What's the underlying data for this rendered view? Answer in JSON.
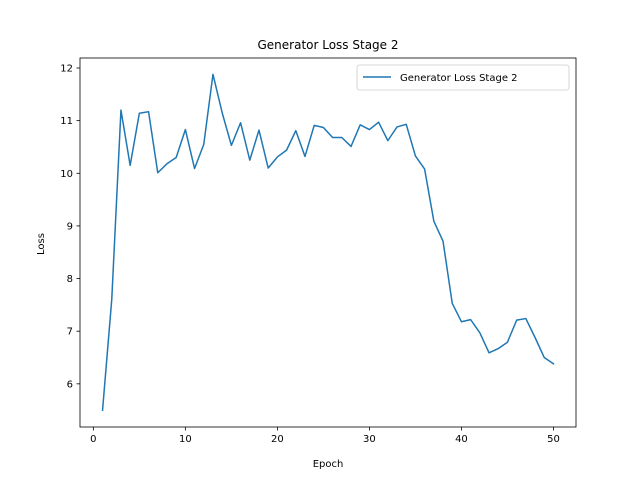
{
  "chart_data": {
    "type": "line",
    "title": "Generator Loss Stage 2",
    "xlabel": "Epoch",
    "ylabel": "Loss",
    "xlim": [
      -1.45,
      52.45
    ],
    "ylim": [
      5.18,
      12.19
    ],
    "xticks": [
      0,
      10,
      20,
      30,
      40,
      50
    ],
    "yticks": [
      6,
      7,
      8,
      9,
      10,
      11,
      12
    ],
    "grid": false,
    "legend_position": "upper right",
    "series": [
      {
        "name": "Generator Loss Stage 2",
        "color": "#1f77b4",
        "x": [
          1,
          2,
          3,
          4,
          5,
          6,
          7,
          8,
          9,
          10,
          11,
          12,
          13,
          14,
          15,
          16,
          17,
          18,
          19,
          20,
          21,
          22,
          23,
          24,
          25,
          26,
          27,
          28,
          29,
          30,
          31,
          32,
          33,
          34,
          35,
          36,
          37,
          38,
          39,
          40,
          41,
          42,
          43,
          44,
          45,
          46,
          47,
          48,
          49,
          50
        ],
        "y": [
          5.5,
          7.6,
          11.2,
          10.15,
          11.14,
          11.17,
          10.01,
          10.18,
          10.3,
          10.83,
          10.09,
          10.55,
          11.88,
          11.15,
          10.53,
          10.96,
          10.25,
          10.82,
          10.1,
          10.31,
          10.44,
          10.81,
          10.32,
          10.91,
          10.87,
          10.68,
          10.68,
          10.51,
          10.92,
          10.83,
          10.97,
          10.62,
          10.88,
          10.93,
          10.33,
          10.08,
          9.09,
          8.71,
          7.53,
          7.18,
          7.22,
          6.97,
          6.59,
          6.67,
          6.79,
          7.21,
          7.24,
          6.88,
          6.5,
          6.38
        ]
      }
    ]
  }
}
